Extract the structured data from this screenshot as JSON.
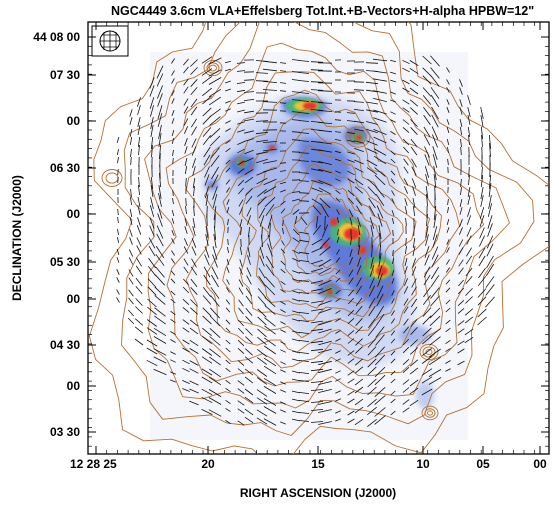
{
  "figure": {
    "title": "NGC4449 3.6cm VLA+Effelsberg  Tot.Int.+B-Vectors+H-alpha  HPBW=12\"",
    "xlabel": "RIGHT ASCENSION (J2000)",
    "ylabel": "DECLINATION (J2000)",
    "x_ticks": [
      "12 28 25",
      "20",
      "15",
      "10",
      "05",
      "00"
    ],
    "y_ticks": [
      "44 08 00",
      "07 30",
      "00",
      "06 30",
      "00",
      "05 30",
      "00",
      "04 30",
      "00",
      "03 30"
    ],
    "beam_icon": "beam-ellipse-icon",
    "colors": {
      "contour": "#b5712f",
      "vector": "#111111",
      "halpha_low": "#c9d4f2",
      "halpha_mid": "#3d5fcf",
      "halpha_high": "#e8352a"
    }
  }
}
